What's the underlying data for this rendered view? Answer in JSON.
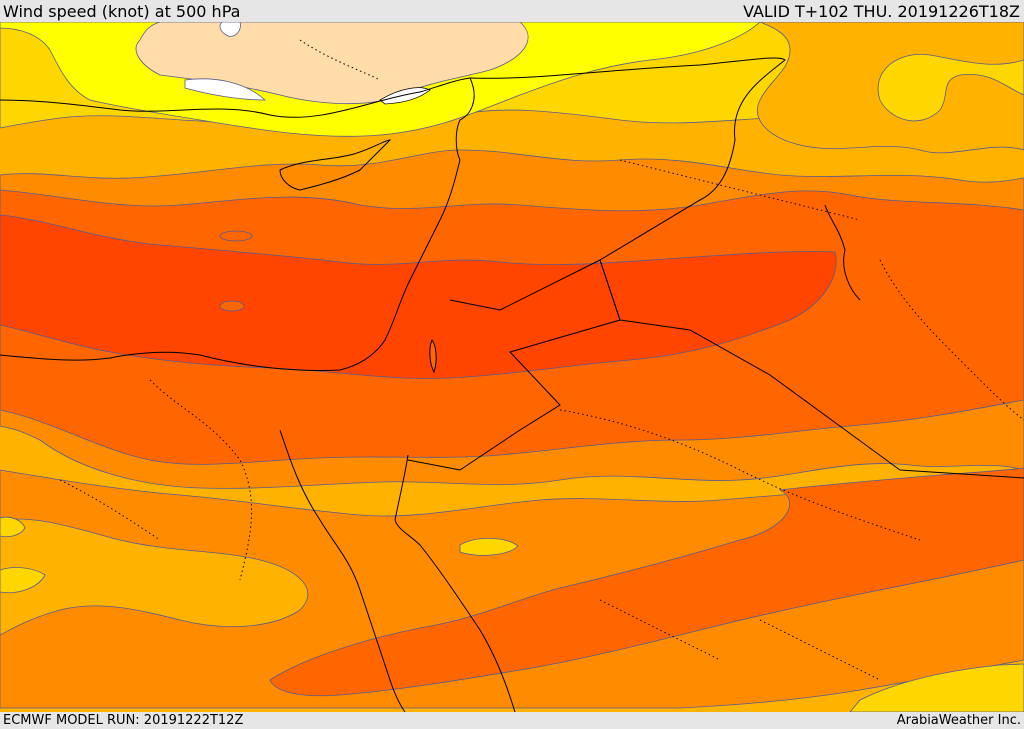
{
  "header": {
    "title": "Wind speed (knot) at 500 hPa",
    "valid": "VALID T+102 THU. 20191226T18Z"
  },
  "footer": {
    "model_run": "ECMWF MODEL RUN: 20191222T12Z",
    "credit": "ArabiaWeather Inc."
  },
  "colors": {
    "calm": "#ffffff",
    "band_pale": "#ffdca8",
    "band_yellow": "#ffff00",
    "band_gold": "#ffd700",
    "band_amber": "#ffb300",
    "band_orange": "#ff8c00",
    "band_deep_orange": "#ff6600",
    "band_red_orange": "#ff4500",
    "contour": "#5a5a8c",
    "coastline": "#000000"
  }
}
